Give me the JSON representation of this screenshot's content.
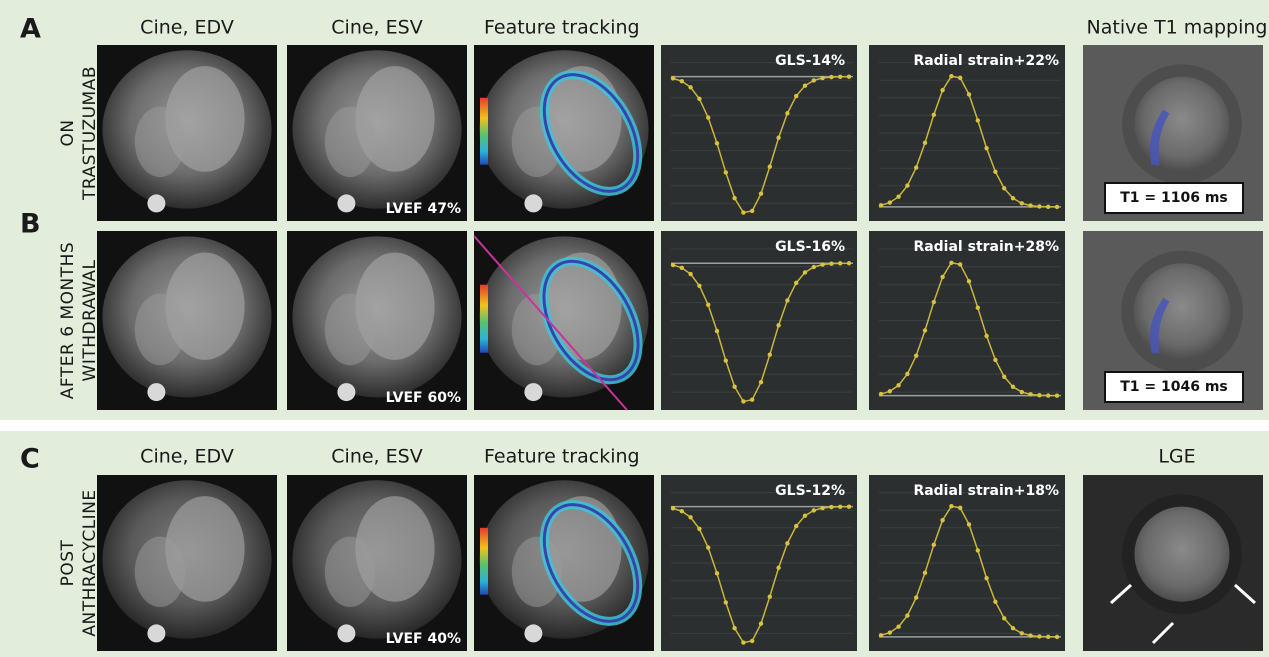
{
  "sections": [
    {
      "headers": [
        "Cine, EDV",
        "Cine, ESV",
        "Feature tracking",
        "Native T1 mapping"
      ],
      "rows": [
        {
          "letter": "A",
          "label": [
            "ON",
            "TRASTUZUMAB"
          ],
          "lvef": "LVEF 47%",
          "gls": "GLS-14%",
          "radial": "Radial strain+22%",
          "t1": "T1 = 1106 ms"
        },
        {
          "letter": "B",
          "label": [
            "AFTER 6 MONTHS",
            "WITHDRAWAL"
          ],
          "lvef": "LVEF 60%",
          "gls": "GLS-16%",
          "radial": "Radial strain+28%",
          "t1": "T1 = 1046 ms"
        }
      ]
    },
    {
      "headers": [
        "Cine, EDV",
        "Cine, ESV",
        "Feature tracking",
        "LGE"
      ],
      "rows": [
        {
          "letter": "C",
          "label": [
            "POST",
            "ANTHRACYCLINE"
          ],
          "lvef": "LVEF 40%",
          "gls": "GLS-12%",
          "radial": "Radial strain+18%"
        }
      ]
    }
  ]
}
